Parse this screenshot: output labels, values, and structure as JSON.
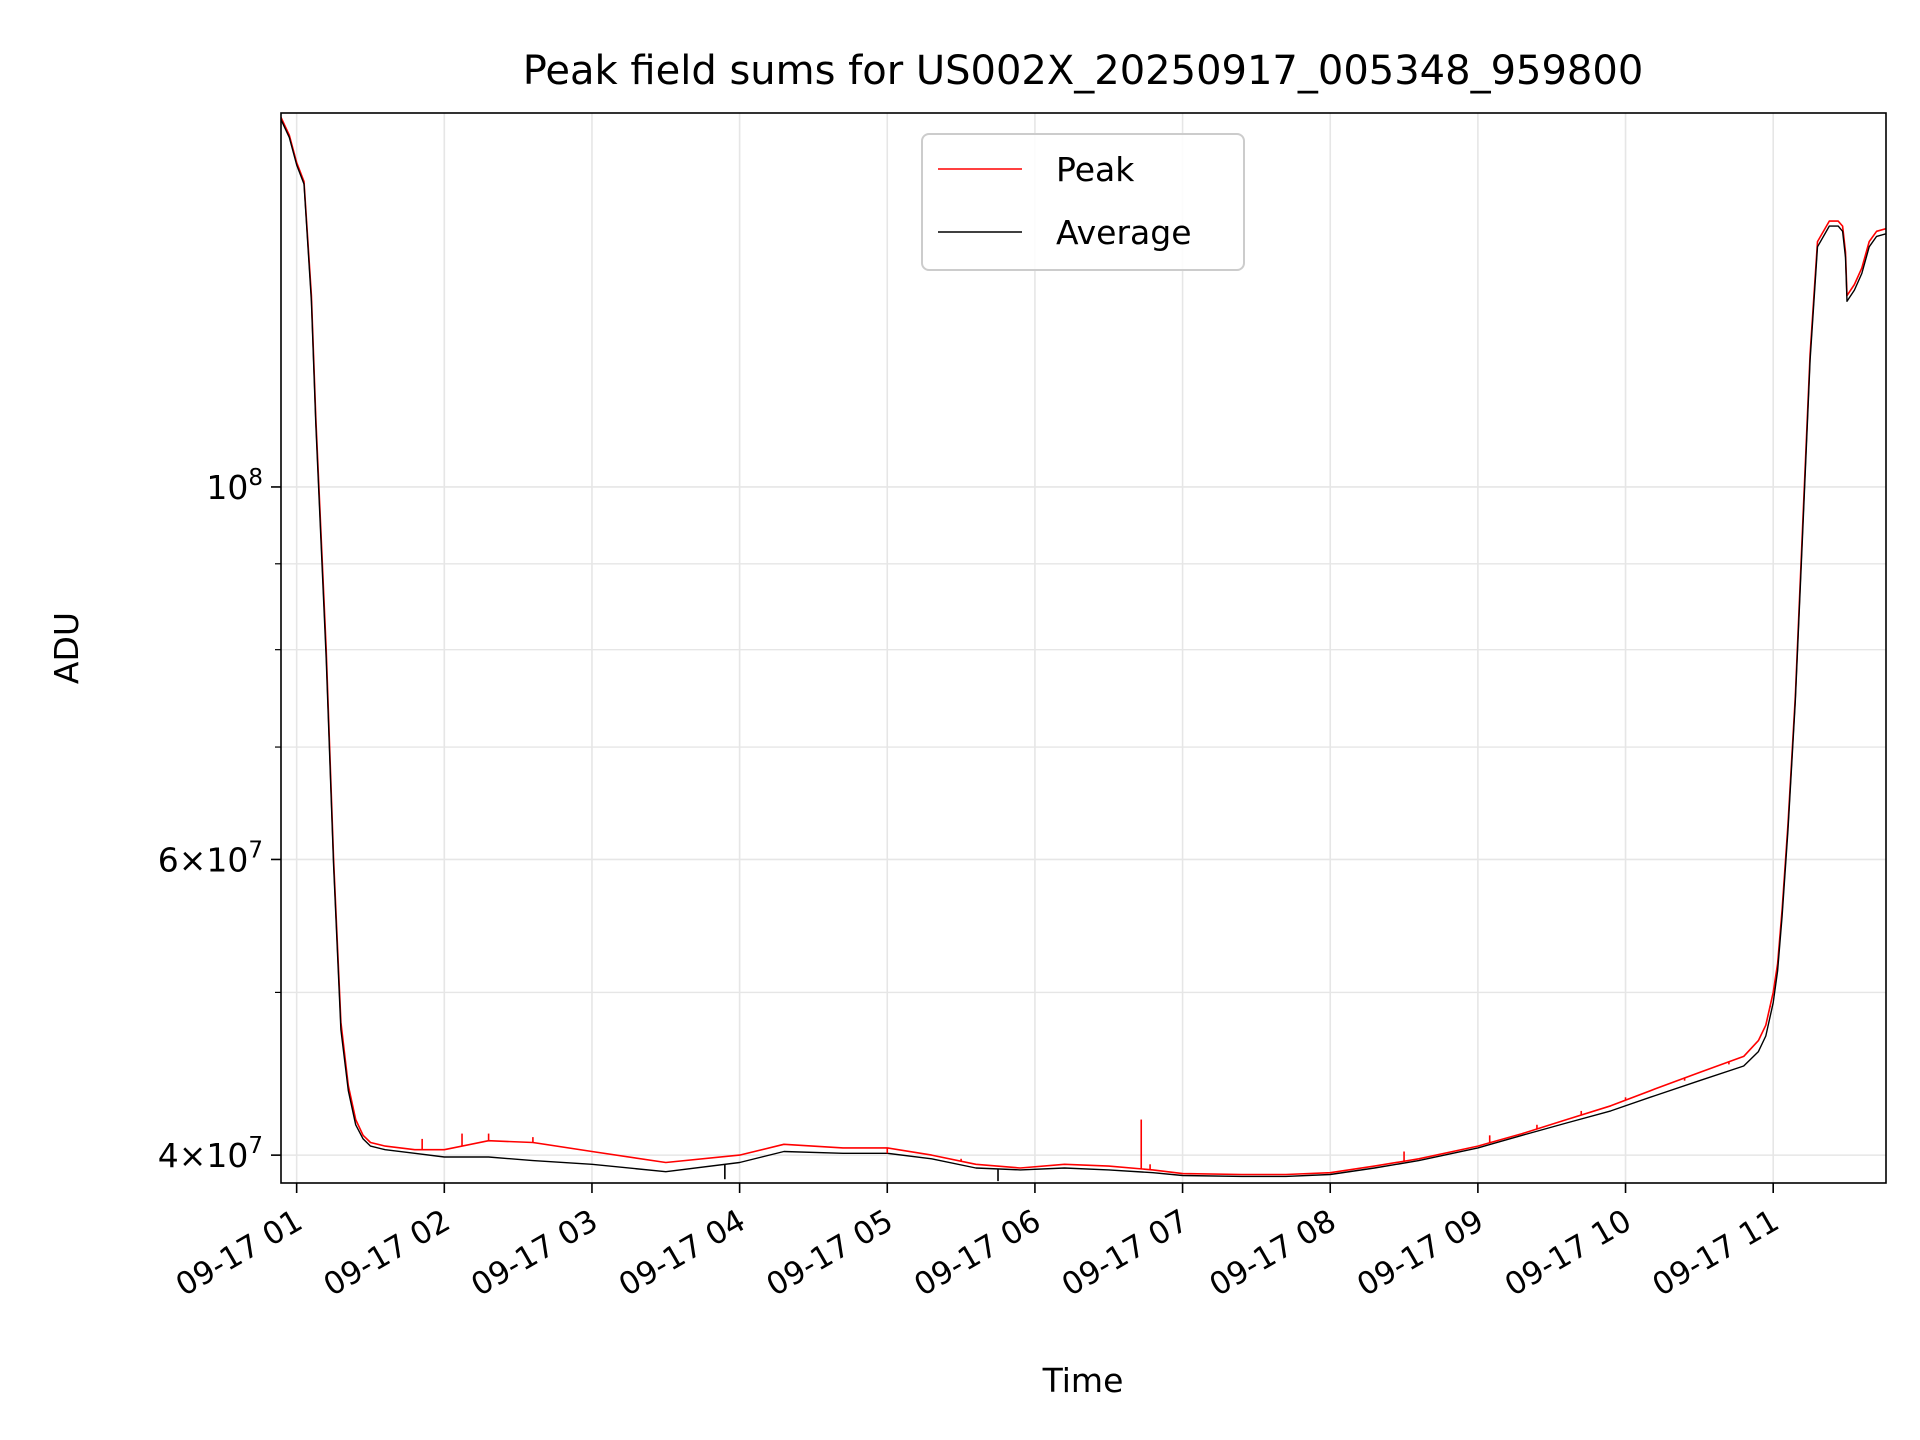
{
  "chart_data": {
    "type": "line",
    "title": "Peak field sums for US002X_20250917_005348_959800",
    "xlabel": "Time",
    "ylabel": "ADU",
    "yscale": "log",
    "ylim": [
      38500000,
      167000000
    ],
    "xlim": [
      0.894,
      11.764
    ],
    "grid": true,
    "legend_position": "top-center",
    "x_ticks": [
      {
        "value": 1,
        "label": "09-17 01"
      },
      {
        "value": 2,
        "label": "09-17 02"
      },
      {
        "value": 3,
        "label": "09-17 03"
      },
      {
        "value": 4,
        "label": "09-17 04"
      },
      {
        "value": 5,
        "label": "09-17 05"
      },
      {
        "value": 6,
        "label": "09-17 06"
      },
      {
        "value": 7,
        "label": "09-17 07"
      },
      {
        "value": 8,
        "label": "09-17 08"
      },
      {
        "value": 9,
        "label": "09-17 09"
      },
      {
        "value": 10,
        "label": "09-17 10"
      },
      {
        "value": 11,
        "label": "09-17 11"
      }
    ],
    "y_ticks_major": [
      {
        "value": 40000000,
        "mantissa": "4",
        "exponent": "7"
      },
      {
        "value": 60000000,
        "mantissa": "6",
        "exponent": "7"
      },
      {
        "value": 100000000,
        "mantissa": "",
        "exponent": "8"
      }
    ],
    "y_ticks_minor": [
      50000000,
      70000000,
      80000000,
      90000000
    ],
    "series": [
      {
        "name": "Peak",
        "color": "#ff0000",
        "x": [
          0.894,
          0.95,
          1.0,
          1.05,
          1.1,
          1.13,
          1.2,
          1.25,
          1.3,
          1.35,
          1.4,
          1.45,
          1.5,
          1.6,
          1.8,
          2.0,
          2.3,
          2.6,
          3.0,
          3.5,
          4.0,
          4.3,
          4.7,
          5.0,
          5.3,
          5.6,
          5.9,
          6.2,
          6.5,
          6.8,
          7.0,
          7.4,
          7.7,
          8.0,
          8.3,
          8.6,
          9.0,
          9.3,
          9.6,
          9.9,
          10.2,
          10.5,
          10.8,
          10.9,
          10.95,
          11.0,
          11.03,
          11.06,
          11.1,
          11.15,
          11.2,
          11.25,
          11.3,
          11.38,
          11.44,
          11.47,
          11.49,
          11.5,
          11.55,
          11.6,
          11.65,
          11.7,
          11.764
        ],
        "values": [
          166000000,
          162000000,
          156000000,
          152000000,
          130000000,
          110000000,
          80000000,
          60000000,
          48000000,
          44000000,
          42000000,
          41100000,
          40700000,
          40500000,
          40300000,
          40300000,
          40800000,
          40700000,
          40200000,
          39600000,
          40000000,
          40600000,
          40400000,
          40400000,
          40000000,
          39500000,
          39300000,
          39500000,
          39400000,
          39200000,
          39000000,
          38950000,
          38950000,
          39050000,
          39400000,
          39800000,
          40500000,
          41200000,
          42000000,
          42800000,
          43800000,
          44800000,
          45800000,
          46800000,
          47800000,
          50000000,
          52000000,
          56000000,
          63000000,
          75000000,
          95000000,
          120000000,
          140000000,
          144000000,
          144000000,
          143000000,
          138000000,
          130000000,
          132000000,
          135000000,
          140000000,
          142000000,
          142500000
        ]
      },
      {
        "name": "Average",
        "color": "#000000",
        "x": [
          0.894,
          0.95,
          1.0,
          1.05,
          1.1,
          1.13,
          1.2,
          1.25,
          1.3,
          1.35,
          1.4,
          1.45,
          1.5,
          1.6,
          1.8,
          2.0,
          2.3,
          2.6,
          3.0,
          3.5,
          4.0,
          4.3,
          4.7,
          5.0,
          5.3,
          5.6,
          5.9,
          6.2,
          6.5,
          6.8,
          7.0,
          7.4,
          7.7,
          8.0,
          8.3,
          8.6,
          9.0,
          9.3,
          9.6,
          9.9,
          10.2,
          10.5,
          10.8,
          10.9,
          10.95,
          11.0,
          11.03,
          11.06,
          11.1,
          11.15,
          11.2,
          11.25,
          11.3,
          11.38,
          11.44,
          11.47,
          11.49,
          11.5,
          11.55,
          11.6,
          11.65,
          11.7,
          11.764
        ],
        "values": [
          165500000,
          161500000,
          155500000,
          151500000,
          129000000,
          109000000,
          79000000,
          59500000,
          47500000,
          43700000,
          41700000,
          40900000,
          40500000,
          40300000,
          40100000,
          39900000,
          39900000,
          39700000,
          39500000,
          39100000,
          39600000,
          40200000,
          40100000,
          40100000,
          39800000,
          39300000,
          39200000,
          39300000,
          39200000,
          39050000,
          38900000,
          38850000,
          38850000,
          38950000,
          39300000,
          39700000,
          40400000,
          41100000,
          41800000,
          42500000,
          43400000,
          44300000,
          45200000,
          46100000,
          47100000,
          49300000,
          51500000,
          55500000,
          62500000,
          74500000,
          94000000,
          119000000,
          139000000,
          143000000,
          143000000,
          142000000,
          137000000,
          129000000,
          131000000,
          134000000,
          139000000,
          141000000,
          141500000
        ]
      }
    ],
    "spikes": [
      {
        "series": "Peak",
        "x": 1.85,
        "value": 40900000
      },
      {
        "series": "Peak",
        "x": 2.12,
        "value": 41200000
      },
      {
        "series": "Peak",
        "x": 2.3,
        "value": 41200000
      },
      {
        "series": "Peak",
        "x": 2.6,
        "value": 41000000
      },
      {
        "series": "Peak",
        "x": 5.0,
        "value": 40100000
      },
      {
        "series": "Peak",
        "x": 5.5,
        "value": 39800000
      },
      {
        "series": "Peak",
        "x": 6.72,
        "value": 42000000
      },
      {
        "series": "Peak",
        "x": 6.78,
        "value": 39500000
      },
      {
        "series": "Peak",
        "x": 8.5,
        "value": 40200000
      },
      {
        "series": "Peak",
        "x": 9.08,
        "value": 41100000
      },
      {
        "series": "Peak",
        "x": 9.4,
        "value": 41700000
      },
      {
        "series": "Peak",
        "x": 9.7,
        "value": 42500000
      },
      {
        "series": "Peak",
        "x": 10.0,
        "value": 43300000
      },
      {
        "series": "Peak",
        "x": 10.4,
        "value": 44300000
      },
      {
        "series": "Peak",
        "x": 10.7,
        "value": 45300000
      },
      {
        "series": "Peak",
        "x": 10.98,
        "value": 49000000
      },
      {
        "series": "Average",
        "x": 3.9,
        "value": 38700000
      },
      {
        "series": "Average",
        "x": 5.75,
        "value": 38600000
      }
    ]
  }
}
